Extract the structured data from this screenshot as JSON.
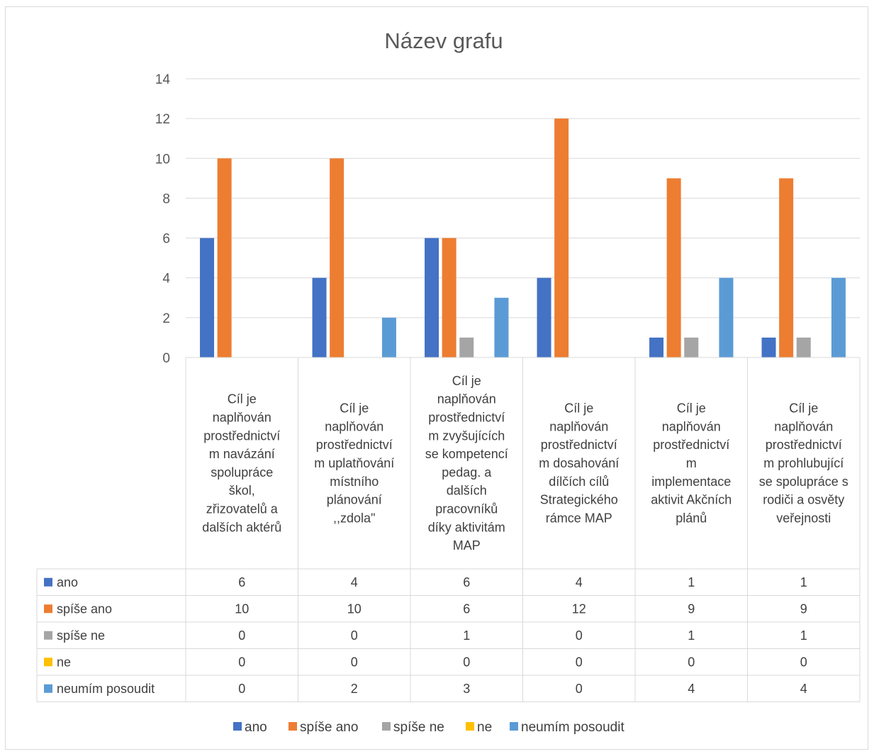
{
  "chart_data": {
    "type": "bar",
    "title": "Název grafu",
    "ylim": [
      0,
      14
    ],
    "yticks": [
      0,
      2,
      4,
      6,
      8,
      10,
      12,
      14
    ],
    "grid": true,
    "legend_position": "bottom",
    "data_table": true,
    "categories": [
      "Cíl je naplňován prostřednictvím navázání spolupráce škol, zřizovatelů a dalších aktérů",
      "Cíl je naplňován prostřednictvím uplatňování místního plánování ,,zdola\"",
      "Cíl je naplňován prostřednictvím zvyšujících se kompetencí pedag. a dalších pracovníků díky aktivitám MAP",
      "Cíl je naplňován prostřednictvím dosahování dílčích cílů Strategického rámce MAP",
      "Cíl je naplňován prostřednictvím implementace aktivit Akčních plánů",
      "Cíl je naplňován prostřednictvím prohlubující se spolupráce s rodiči a osvěty veřejnosti"
    ],
    "category_lines": [
      [
        "Cíl je",
        "naplňován",
        "prostřednictví",
        "m navázání",
        "spolupráce",
        "škol,",
        "zřizovatelů a",
        "dalších aktérů"
      ],
      [
        "Cíl je",
        "naplňován",
        "prostřednictví",
        "m uplatňování",
        "místního",
        "plánování",
        ",,zdola\""
      ],
      [
        "Cíl je",
        "naplňován",
        "prostřednictví",
        "m zvyšujících",
        "se kompetencí",
        "pedag. a",
        "dalších",
        "pracovníků",
        "díky aktivitám",
        "MAP"
      ],
      [
        "Cíl je",
        "naplňován",
        "prostřednictví",
        "m dosahování",
        "dílčích cílů",
        "Strategického",
        "rámce MAP"
      ],
      [
        "Cíl je",
        "naplňován",
        "prostřednictví",
        "m",
        "implementace",
        "aktivit Akčních",
        "plánů"
      ],
      [
        "Cíl je",
        "naplňován",
        "prostřednictví",
        "m prohlubující",
        "se spolupráce s",
        "rodiči a osvěty",
        "veřejnosti"
      ]
    ],
    "series": [
      {
        "name": "ano",
        "color": "#4472C4",
        "values": [
          6,
          4,
          6,
          4,
          1,
          1
        ]
      },
      {
        "name": "spíše ano",
        "color": "#ED7D31",
        "values": [
          10,
          10,
          6,
          12,
          9,
          9
        ]
      },
      {
        "name": "spíše ne",
        "color": "#A5A5A5",
        "values": [
          0,
          0,
          1,
          0,
          1,
          1
        ]
      },
      {
        "name": "ne",
        "color": "#FFC000",
        "values": [
          0,
          0,
          0,
          0,
          0,
          0
        ]
      },
      {
        "name": "neumím posoudit",
        "color": "#5B9BD5",
        "values": [
          0,
          2,
          3,
          0,
          4,
          4
        ]
      }
    ]
  }
}
